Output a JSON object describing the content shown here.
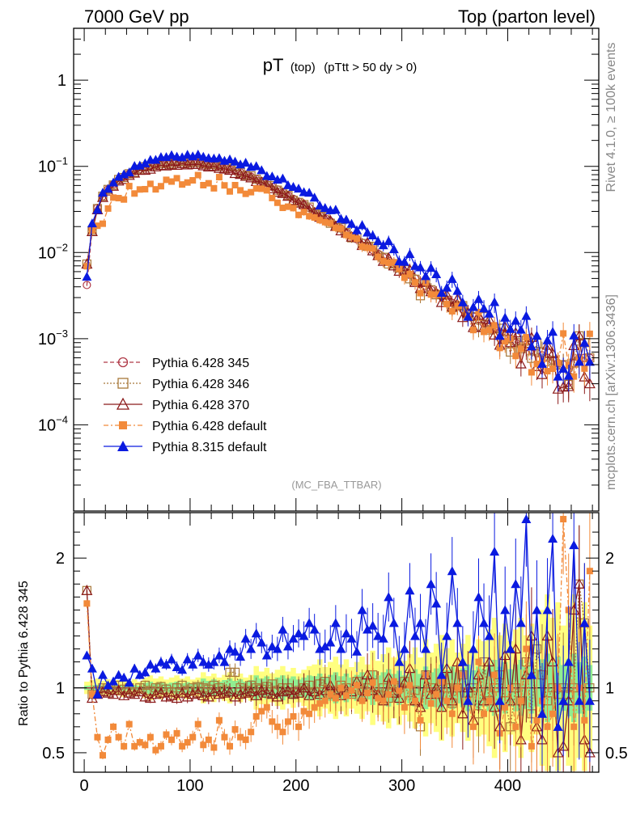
{
  "header": {
    "left": "7000 GeV pp",
    "right": "Top (parton level)"
  },
  "side_labels": {
    "rivet": "Rivet 4.1.0, ≥ 100k events",
    "mcplots": "mcplots.cern.ch [arXiv:1306.3436]"
  },
  "colors": {
    "p345": "#b03a48",
    "p346": "#a8783a",
    "p370": "#8b1a1a",
    "p6def": "#f28a3a",
    "p8def": "#0a1ae0",
    "band_inner": "#90ee90",
    "band_outer": "#ffff80"
  },
  "chart_data": [
    {
      "type": "line",
      "panel": "main",
      "title": "pT (top) (pTtt > 50 dy > 0)",
      "title_main": "pT",
      "title_sub": "(top)",
      "title_cut": "(pTtt > 50 dy > 0)",
      "analysis": "(MC_FBA_TTBAR)",
      "yscale": "log",
      "ylim": [
        1e-05,
        4
      ],
      "xlim": [
        -10,
        486
      ],
      "ytick_labels": [
        "1",
        "10^-1",
        "10^-2",
        "10^-3",
        "10^-4"
      ],
      "ytick_values": [
        1,
        0.1,
        0.01,
        0.001,
        0.0001
      ],
      "x_bin_width": 5,
      "x_start": 2.5,
      "reference": [
        0.0042,
        0.019,
        0.033,
        0.045,
        0.054,
        0.062,
        0.069,
        0.075,
        0.082,
        0.088,
        0.093,
        0.097,
        0.101,
        0.104,
        0.107,
        0.109,
        0.111,
        0.112,
        0.112,
        0.112,
        0.111,
        0.11,
        0.108,
        0.106,
        0.103,
        0.1,
        0.097,
        0.093,
        0.089,
        0.085,
        0.08,
        0.076,
        0.071,
        0.067,
        0.062,
        0.058,
        0.054,
        0.05,
        0.046,
        0.042,
        0.039,
        0.036,
        0.033,
        0.03,
        0.027,
        0.025,
        0.023,
        0.021,
        0.019,
        0.017,
        0.0156,
        0.0142,
        0.013,
        0.0118,
        0.0107,
        0.0097,
        0.0088,
        0.008,
        0.0073,
        0.0066,
        0.006,
        0.0055,
        0.005,
        0.0045,
        0.0041,
        0.0037,
        0.0034,
        0.0031,
        0.0028,
        0.0026,
        0.0024,
        0.0022,
        0.002,
        0.0018,
        0.0017,
        0.0015,
        0.0014,
        0.0013,
        0.0012,
        0.0011,
        0.001,
        0.0009,
        0.00085,
        0.0008,
        0.00074,
        0.00068,
        0.00064,
        0.0006,
        0.00056,
        0.00052,
        0.0005,
        0.00031,
        0.00052,
        0.0006,
        0.0006,
        0.0006
      ],
      "series": [
        {
          "name": "Pythia 6.428 345",
          "key": "p345",
          "marker": "circle",
          "dash": "5,3"
        },
        {
          "name": "Pythia 6.428 346",
          "key": "p346",
          "marker": "square",
          "dash": "2,2"
        },
        {
          "name": "Pythia 6.428 370",
          "key": "p370",
          "marker": "triangle",
          "dash": ""
        },
        {
          "name": "Pythia 6.428 default",
          "key": "p6def",
          "marker": "fsquare",
          "dash": "6,3,2,3"
        },
        {
          "name": "Pythia 8.315 default",
          "key": "p8def",
          "marker": "ftriangle",
          "dash": ""
        }
      ]
    },
    {
      "type": "line",
      "panel": "ratio",
      "ylabel": "Ratio to Pythia 6.428 345",
      "ylim": [
        0.35,
        2.35
      ],
      "xlim": [
        -10,
        486
      ],
      "ytick_labels": [
        "2",
        "1",
        "0.5"
      ],
      "ytick_values": [
        2,
        1,
        0.5
      ],
      "xtick_labels": [
        "0",
        "100",
        "200",
        "300",
        "400"
      ],
      "xtick_values": [
        0,
        100,
        200,
        300,
        400
      ],
      "band_inner_halfwidth": [
        0.02,
        0.04,
        0.06,
        0.08,
        0.1,
        0.12,
        0.15,
        0.18,
        0.22
      ],
      "band_outer_halfwidth": [
        0.06,
        0.08,
        0.1,
        0.14,
        0.2,
        0.26,
        0.34,
        0.45,
        0.6
      ],
      "ratio_p346": [
        1.75,
        0.95,
        0.98,
        1.0,
        1.0,
        0.98,
        1.02,
        0.99,
        1.0,
        0.97,
        1.0,
        1.02,
        0.98,
        1.0,
        1.01,
        0.99,
        0.97,
        1.0,
        1.02,
        0.98,
        1.0,
        1.01,
        1.0,
        0.99,
        1.02,
        1.0,
        0.98,
        1.12,
        1.12,
        1.0,
        0.98,
        1.02,
        1.0,
        0.99,
        1.01,
        1.03,
        0.98,
        1.0,
        1.0,
        0.96,
        0.98,
        1.0,
        1.02,
        0.97,
        1.03,
        1.05,
        0.95,
        0.98,
        1.02,
        1.0,
        0.95,
        1.05,
        0.98,
        1.0,
        1.1,
        0.95,
        1.0,
        0.92,
        1.02,
        1.0,
        1.05,
        0.9,
        0.98,
        0.7,
        1.1,
        1.0,
        0.95,
        1.05,
        1.0,
        0.88,
        1.0,
        1.1,
        0.96,
        1.0,
        0.8,
        1.2,
        0.9,
        1.0,
        1.1,
        0.9,
        0.7,
        1.0,
        0.9,
        1.2,
        0.8,
        1.3,
        1.1,
        0.9,
        1.0,
        0.95,
        1.0,
        0.95,
        1.0,
        1.8,
        1.5,
        1.0
      ],
      "ratio_p370": [
        1.75,
        0.92,
        0.95,
        0.97,
        0.96,
        0.95,
        0.98,
        0.94,
        0.96,
        0.95,
        0.97,
        0.93,
        0.92,
        0.95,
        0.96,
        0.93,
        0.94,
        0.92,
        0.96,
        0.93,
        0.95,
        0.96,
        0.94,
        0.93,
        0.97,
        0.95,
        0.96,
        0.97,
        0.93,
        0.95,
        0.96,
        0.97,
        0.94,
        0.98,
        0.96,
        0.95,
        0.93,
        0.97,
        0.98,
        0.95,
        0.96,
        1.0,
        0.94,
        0.97,
        0.95,
        0.98,
        1.02,
        0.96,
        0.94,
        0.99,
        0.97,
        1.05,
        0.93,
        1.1,
        0.98,
        0.95,
        0.9,
        1.08,
        0.96,
        0.92,
        1.04,
        1.15,
        0.9,
        0.85,
        1.1,
        0.95,
        1.0,
        0.85,
        1.15,
        0.9,
        1.2,
        0.8,
        1.0,
        0.75,
        1.1,
        0.9,
        1.2,
        0.85,
        0.7,
        1.25,
        0.9,
        1.3,
        0.6,
        1.1,
        1.4,
        0.7,
        0.6,
        1.4,
        1.2,
        0.5,
        0.55,
        0.9,
        1.6,
        1.8,
        0.6,
        0.5
      ],
      "ratio_p6def": [
        1.65,
        0.95,
        0.62,
        0.48,
        0.6,
        0.7,
        0.62,
        0.55,
        0.72,
        0.55,
        0.58,
        0.56,
        0.62,
        0.52,
        0.55,
        0.64,
        0.6,
        0.65,
        0.55,
        0.58,
        0.62,
        0.72,
        0.56,
        0.6,
        0.54,
        0.75,
        0.62,
        0.55,
        0.68,
        0.62,
        0.6,
        0.66,
        0.78,
        0.82,
        0.85,
        0.74,
        0.7,
        0.66,
        0.74,
        0.78,
        0.7,
        0.82,
        0.8,
        0.85,
        0.88,
        0.9,
        0.95,
        0.92,
        1.0,
        0.94,
        0.98,
        1.02,
        0.9,
        0.96,
        1.04,
        0.92,
        0.9,
        0.95,
        1.05,
        0.98,
        0.85,
        1.02,
        0.9,
        0.75,
        1.1,
        0.88,
        0.95,
        1.05,
        0.9,
        0.8,
        1.0,
        1.1,
        0.9,
        0.7,
        1.2,
        0.8,
        0.9,
        1.1,
        0.65,
        0.85,
        1.0,
        0.7,
        0.9,
        1.3,
        0.55,
        0.75,
        0.9,
        0.7,
        0.8,
        1.0,
        2.3,
        1.6,
        0.7,
        1.0,
        0.75,
        1.9
      ],
      "ratio_p8def": [
        1.25,
        1.15,
        0.95,
        1.1,
        1.02,
        1.05,
        1.1,
        1.08,
        1.04,
        1.15,
        1.1,
        1.12,
        1.18,
        1.15,
        1.2,
        1.18,
        1.22,
        1.16,
        1.14,
        1.22,
        1.18,
        1.25,
        1.2,
        1.18,
        1.2,
        1.25,
        1.2,
        1.3,
        1.28,
        1.24,
        1.38,
        1.3,
        1.42,
        1.35,
        1.25,
        1.32,
        1.3,
        1.45,
        1.32,
        1.38,
        1.42,
        1.4,
        1.5,
        1.45,
        1.3,
        1.32,
        1.35,
        1.5,
        1.3,
        1.42,
        1.38,
        1.28,
        1.6,
        1.45,
        1.48,
        1.4,
        1.38,
        1.7,
        1.5,
        1.2,
        1.3,
        1.75,
        1.4,
        1.5,
        1.3,
        1.8,
        1.65,
        1.1,
        1.4,
        1.9,
        1.5,
        1.2,
        0.9,
        1.3,
        1.7,
        1.5,
        1.4,
        2.05,
        0.9,
        1.6,
        1.3,
        1.8,
        1.5,
        2.3,
        1.1,
        1.6,
        0.8,
        1.6,
        2.15,
        0.7,
        0.9,
        1.2,
        2.1,
        0.9,
        1.5,
        0.9
      ]
    }
  ]
}
